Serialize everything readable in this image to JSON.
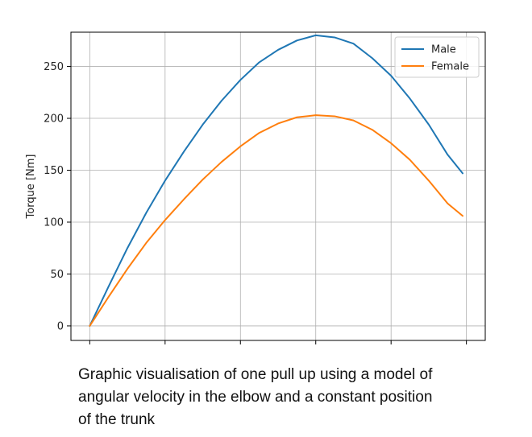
{
  "chart_data": {
    "type": "line",
    "ylabel": "Torque [Nm]",
    "xlabel": "",
    "ylim": [
      -14,
      283
    ],
    "xlim": [
      -0.25,
      5.25
    ],
    "yticks": [
      0,
      50,
      100,
      150,
      200,
      250
    ],
    "xticks": [
      0,
      1,
      2,
      3,
      4,
      5
    ],
    "grid": true,
    "legend_position": "top-right",
    "x": [
      0,
      0.25,
      0.5,
      0.75,
      1,
      1.25,
      1.5,
      1.75,
      2,
      2.25,
      2.5,
      2.75,
      3,
      3.25,
      3.5,
      3.75,
      4,
      4.25,
      4.5,
      4.75,
      4.95
    ],
    "series": [
      {
        "name": "Male",
        "color": "#1f77b4",
        "values": [
          0,
          38,
          75,
          109,
          140,
          168,
          194,
          217,
          237,
          254,
          266,
          275,
          280,
          278,
          272,
          258,
          241,
          219,
          194,
          165,
          147
        ]
      },
      {
        "name": "Female",
        "color": "#ff7f0e",
        "values": [
          0,
          28,
          55,
          80,
          102,
          122,
          141,
          158,
          173,
          186,
          195,
          201,
          203,
          202,
          198,
          189,
          176,
          160,
          140,
          118,
          106
        ]
      }
    ]
  },
  "caption": "Graphic visualisation of one pull up using a model of\nangular velocity in the elbow and a constant position\nof the trunk"
}
